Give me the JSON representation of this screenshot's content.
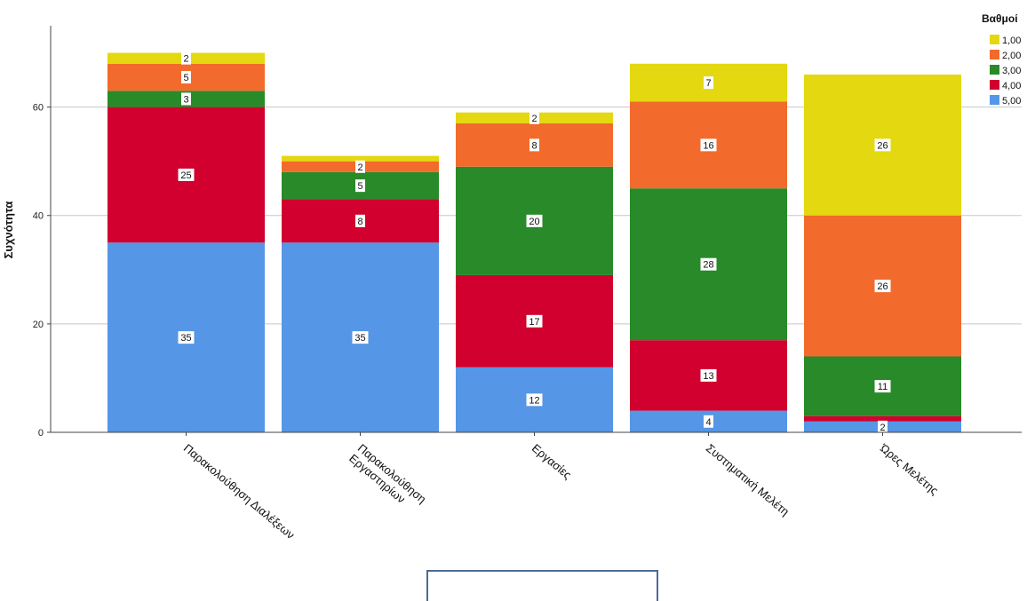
{
  "chart_data": {
    "type": "bar",
    "stacked": true,
    "ylabel": "Συχνότητα",
    "xlabel": "",
    "ylim": [
      0,
      75
    ],
    "yticks": [
      0,
      20,
      40,
      60
    ],
    "grid": true,
    "legend": {
      "title": "Βαθμοί",
      "placement": "top-right"
    },
    "categories": [
      [
        "Παρακολούθηση Διαλέξεων"
      ],
      [
        "Παρακολούθηση",
        "Εργαστηρίων"
      ],
      [
        "Εργασίες"
      ],
      [
        "Συστηματική Μελέτη"
      ],
      [
        "Ώρες Μελέτης"
      ]
    ],
    "series": [
      {
        "name": "5,00",
        "color": "#5596e6",
        "values": [
          35,
          35,
          12,
          4,
          2
        ]
      },
      {
        "name": "4,00",
        "color": "#d1002e",
        "values": [
          25,
          8,
          17,
          13,
          1
        ]
      },
      {
        "name": "3,00",
        "color": "#288a28",
        "values": [
          3,
          5,
          20,
          28,
          11
        ]
      },
      {
        "name": "2,00",
        "color": "#f26b2c",
        "values": [
          5,
          2,
          8,
          16,
          26
        ]
      },
      {
        "name": "1,00",
        "color": "#e4d810",
        "values": [
          2,
          1,
          2,
          7,
          26
        ]
      }
    ],
    "data_labels": [
      [
        "35",
        "25",
        "3",
        "5",
        "2"
      ],
      [
        "35",
        "8",
        "5",
        "2",
        ""
      ],
      [
        "12",
        "17",
        "20",
        "8",
        "2"
      ],
      [
        "4",
        "13",
        "28",
        "16",
        "7"
      ],
      [
        "2",
        "",
        "11",
        "26",
        "26"
      ]
    ],
    "legend_order": [
      "1,00",
      "2,00",
      "3,00",
      "4,00",
      "5,00"
    ]
  }
}
